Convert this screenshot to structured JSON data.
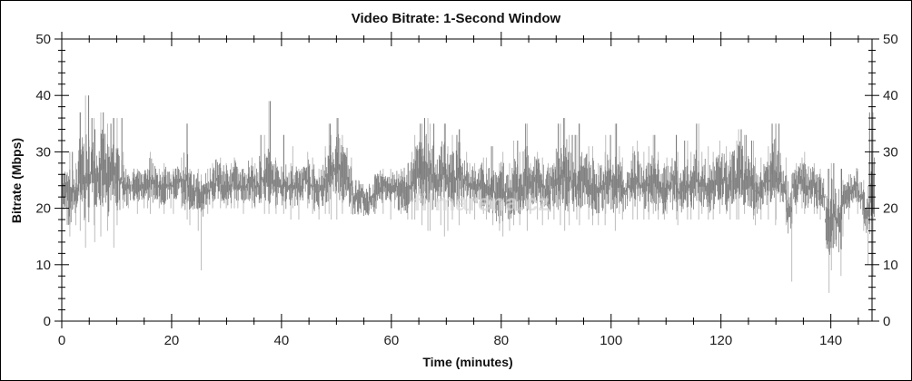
{
  "chart_data": {
    "type": "area",
    "title": "Video Bitrate: 1-Second Window",
    "xlabel": "Time (minutes)",
    "ylabel": "Bitrate (Mbps)",
    "xlim": [
      0,
      147.5
    ],
    "ylim": [
      0,
      50
    ],
    "x_ticks": [
      "0",
      "20",
      "40",
      "60",
      "80",
      "100",
      "120",
      "140"
    ],
    "y_ticks": [
      "0",
      "10",
      "20",
      "30",
      "40",
      "50"
    ],
    "y_axis_mirrored_right": true,
    "grid": false,
    "legend": "none",
    "series_color": "#808080",
    "x_minutes_step": 1,
    "series": [
      {
        "mean": [
          23,
          22,
          23,
          26,
          25,
          26,
          26,
          27,
          25,
          26,
          25,
          24,
          24,
          24,
          24,
          24,
          25,
          24,
          24,
          24,
          24,
          25,
          25,
          23,
          23,
          22,
          23,
          24,
          25,
          24,
          24,
          25,
          24,
          24,
          25,
          24,
          25,
          26,
          25,
          24,
          24,
          24,
          24,
          24,
          25,
          24,
          23,
          24,
          26,
          27,
          27,
          26,
          24,
          22,
          22,
          21,
          22,
          23,
          24,
          24,
          24,
          23,
          23,
          24,
          26,
          26,
          27,
          26,
          25,
          26,
          25,
          25,
          26,
          25,
          24,
          24,
          24,
          23,
          23,
          22,
          23,
          22,
          24,
          23,
          25,
          24,
          25,
          24,
          23,
          24,
          25,
          26,
          25,
          24,
          25,
          25,
          24,
          23,
          24,
          25,
          24,
          24,
          23,
          24,
          25,
          24,
          24,
          25,
          24,
          23,
          24,
          25,
          23,
          24,
          24,
          25,
          24,
          24,
          24,
          25,
          25,
          24,
          25,
          26,
          25,
          24,
          23,
          24,
          25,
          26,
          25,
          23,
          20,
          24,
          25,
          24,
          24,
          23,
          22,
          18,
          19,
          18,
          22,
          23,
          24,
          22,
          19,
          24
        ],
        "max": [
          29,
          30,
          28,
          37,
          40,
          36,
          34,
          37,
          35,
          36,
          36,
          30,
          26,
          27,
          26,
          27,
          30,
          27,
          28,
          26,
          27,
          29,
          35,
          27,
          27,
          26,
          27,
          28,
          29,
          28,
          28,
          29,
          27,
          27,
          29,
          28,
          33,
          39,
          29,
          28,
          33,
          28,
          31,
          27,
          30,
          29,
          27,
          31,
          35,
          33,
          36,
          33,
          29,
          25,
          25,
          24,
          26,
          26,
          27,
          27,
          26,
          27,
          28,
          30,
          33,
          35,
          36,
          35,
          31,
          35,
          31,
          33,
          34,
          30,
          28,
          28,
          29,
          29,
          31,
          28,
          30,
          28,
          32,
          30,
          35,
          28,
          30,
          29,
          28,
          28,
          35,
          36,
          33,
          33,
          35,
          31,
          31,
          28,
          30,
          33,
          35,
          31,
          29,
          31,
          32,
          30,
          31,
          33,
          30,
          28,
          29,
          33,
          30,
          32,
          30,
          35,
          30,
          31,
          30,
          32,
          31,
          30,
          32,
          34,
          33,
          32,
          29,
          29,
          31,
          35,
          35,
          29,
          26,
          28,
          29,
          30,
          28,
          26,
          27,
          27,
          28,
          27,
          25,
          26,
          27,
          25,
          24,
          37
        ],
        "min": [
          18,
          15,
          17,
          16,
          13,
          17,
          14,
          15,
          16,
          13,
          17,
          20,
          20,
          19,
          20,
          20,
          19,
          20,
          19,
          20,
          19,
          20,
          18,
          17,
          16,
          9,
          19,
          20,
          20,
          20,
          20,
          20,
          20,
          19,
          20,
          20,
          19,
          19,
          20,
          19,
          19,
          18,
          20,
          18,
          20,
          19,
          18,
          19,
          19,
          18,
          18,
          19,
          19,
          19,
          19,
          19,
          19,
          19,
          19,
          18,
          20,
          19,
          18,
          18,
          18,
          17,
          16,
          16,
          17,
          15,
          16,
          18,
          17,
          19,
          19,
          18,
          19,
          18,
          17,
          16,
          15,
          16,
          17,
          17,
          16,
          19,
          18,
          17,
          18,
          18,
          17,
          16,
          17,
          18,
          17,
          18,
          17,
          17,
          17,
          19,
          16,
          19,
          18,
          18,
          18,
          18,
          18,
          19,
          18,
          18,
          19,
          18,
          17,
          18,
          18,
          18,
          19,
          18,
          18,
          19,
          19,
          18,
          18,
          18,
          19,
          18,
          17,
          18,
          18,
          17,
          18,
          17,
          7,
          19,
          20,
          19,
          19,
          19,
          18,
          5,
          9,
          8,
          15,
          18,
          19,
          16,
          10,
          8
        ]
      }
    ]
  },
  "watermark": "filmarena.cz"
}
